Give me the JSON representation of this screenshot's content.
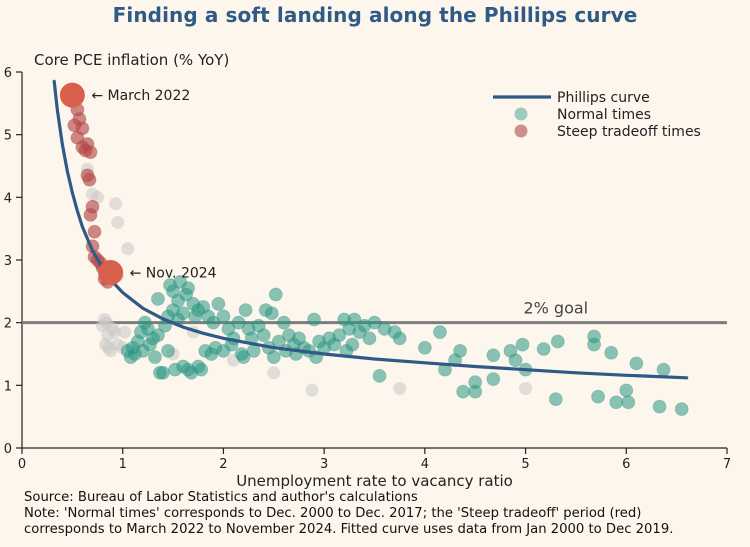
{
  "title": "Finding a soft landing along the Phillips curve",
  "footnotes": {
    "source": "Source: Bureau of Labor Statistics and author's calculations",
    "note1": "Note: 'Normal times' corresponds to Dec. 2000 to Dec. 2017; the 'Steep tradeoff' period (red)",
    "note2": "corresponds to March 2022 to November 2024. Fitted curve uses data from Jan 2000 to Dec 2019."
  },
  "colors": {
    "title": "#2f5a86",
    "curve": "#2f5a86",
    "normal": "#2a9584",
    "steep": "#b34a4a",
    "highlight": "#d9604c",
    "other": "#c9c9c9",
    "goal_line": "#7d7d7d",
    "background": "#fdf6ec"
  },
  "chart_data": {
    "type": "scatter",
    "title": "Finding a soft landing along the Phillips curve",
    "xlabel": "Unemployment rate to vacancy ratio",
    "ylabel": "Core PCE inflation (% YoY)",
    "xlim": [
      0,
      7
    ],
    "ylim": [
      0,
      6
    ],
    "xticks": [
      0,
      1,
      2,
      3,
      4,
      5,
      6,
      7
    ],
    "yticks": [
      0,
      1,
      2,
      3,
      4,
      5,
      6
    ],
    "grid": false,
    "legend_position": "top-right",
    "legend": [
      "Phillips curve",
      "Normal times",
      "Steep tradeoff times"
    ],
    "reference_line": {
      "y": 2,
      "label": "2% goal"
    },
    "annotations": [
      {
        "text": "← March 2022",
        "x": 0.5,
        "y": 5.63
      },
      {
        "text": "← Nov. 2024",
        "x": 0.88,
        "y": 2.8
      }
    ],
    "highlight_points": [
      [
        0.5,
        5.63
      ],
      [
        0.88,
        2.8
      ]
    ],
    "phillips_curve": {
      "x": [
        0.32,
        0.35,
        0.4,
        0.45,
        0.5,
        0.55,
        0.6,
        0.7,
        0.8,
        0.9,
        1.0,
        1.2,
        1.4,
        1.6,
        1.8,
        2.0,
        2.5,
        3.0,
        3.5,
        4.0,
        4.5,
        5.0,
        5.5,
        6.0,
        6.6
      ],
      "y": [
        5.85,
        5.4,
        4.85,
        4.42,
        4.07,
        3.78,
        3.53,
        3.15,
        2.87,
        2.65,
        2.48,
        2.23,
        2.06,
        1.93,
        1.83,
        1.75,
        1.6,
        1.5,
        1.42,
        1.36,
        1.3,
        1.25,
        1.2,
        1.16,
        1.12
      ]
    },
    "series": [
      {
        "name": "Normal times",
        "points": [
          [
            1.05,
            1.55
          ],
          [
            1.08,
            1.45
          ],
          [
            1.1,
            1.6
          ],
          [
            1.12,
            1.5
          ],
          [
            1.15,
            1.7
          ],
          [
            1.18,
            1.85
          ],
          [
            1.2,
            1.55
          ],
          [
            1.22,
            2.0
          ],
          [
            1.25,
            1.9
          ],
          [
            1.27,
            1.65
          ],
          [
            1.3,
            1.75
          ],
          [
            1.32,
            1.45
          ],
          [
            1.35,
            1.8
          ],
          [
            1.35,
            2.38
          ],
          [
            1.37,
            1.2
          ],
          [
            1.4,
            1.2
          ],
          [
            1.42,
            1.95
          ],
          [
            1.45,
            2.1
          ],
          [
            1.45,
            1.55
          ],
          [
            1.47,
            2.6
          ],
          [
            1.5,
            2.5
          ],
          [
            1.5,
            2.2
          ],
          [
            1.52,
            1.25
          ],
          [
            1.55,
            2.35
          ],
          [
            1.55,
            2.05
          ],
          [
            1.57,
            2.65
          ],
          [
            1.6,
            1.3
          ],
          [
            1.6,
            2.15
          ],
          [
            1.63,
            2.45
          ],
          [
            1.65,
            1.25
          ],
          [
            1.65,
            2.55
          ],
          [
            1.68,
            1.2
          ],
          [
            1.7,
            2.3
          ],
          [
            1.72,
            2.1
          ],
          [
            1.75,
            1.3
          ],
          [
            1.75,
            2.2
          ],
          [
            1.78,
            1.25
          ],
          [
            1.8,
            2.25
          ],
          [
            1.82,
            1.55
          ],
          [
            1.85,
            2.1
          ],
          [
            1.88,
            1.5
          ],
          [
            1.9,
            2.0
          ],
          [
            1.92,
            1.6
          ],
          [
            1.95,
            2.3
          ],
          [
            2.0,
            1.55
          ],
          [
            2.0,
            2.1
          ],
          [
            2.05,
            1.9
          ],
          [
            2.08,
            1.65
          ],
          [
            2.1,
            1.75
          ],
          [
            2.15,
            2.0
          ],
          [
            2.18,
            1.5
          ],
          [
            2.2,
            1.45
          ],
          [
            2.22,
            2.2
          ],
          [
            2.25,
            1.9
          ],
          [
            2.28,
            1.75
          ],
          [
            2.3,
            1.55
          ],
          [
            2.35,
            1.95
          ],
          [
            2.4,
            1.8
          ],
          [
            2.42,
            2.2
          ],
          [
            2.45,
            1.6
          ],
          [
            2.48,
            2.15
          ],
          [
            2.5,
            1.45
          ],
          [
            2.52,
            2.45
          ],
          [
            2.55,
            1.7
          ],
          [
            2.6,
            2.0
          ],
          [
            2.62,
            1.55
          ],
          [
            2.65,
            1.8
          ],
          [
            2.7,
            1.65
          ],
          [
            2.72,
            1.5
          ],
          [
            2.75,
            1.75
          ],
          [
            2.8,
            1.6
          ],
          [
            2.85,
            1.55
          ],
          [
            2.9,
            2.05
          ],
          [
            2.92,
            1.45
          ],
          [
            2.95,
            1.7
          ],
          [
            3.0,
            1.6
          ],
          [
            3.05,
            1.75
          ],
          [
            3.1,
            1.65
          ],
          [
            3.15,
            1.8
          ],
          [
            3.2,
            2.05
          ],
          [
            3.22,
            1.55
          ],
          [
            3.25,
            1.9
          ],
          [
            3.28,
            1.65
          ],
          [
            3.3,
            2.05
          ],
          [
            3.35,
            1.85
          ],
          [
            3.4,
            1.95
          ],
          [
            3.45,
            1.75
          ],
          [
            3.5,
            2.0
          ],
          [
            3.55,
            1.15
          ],
          [
            3.6,
            1.9
          ],
          [
            3.7,
            1.85
          ],
          [
            3.75,
            1.75
          ],
          [
            4.0,
            1.6
          ],
          [
            4.15,
            1.85
          ],
          [
            4.2,
            1.25
          ],
          [
            4.3,
            1.4
          ],
          [
            4.35,
            1.55
          ],
          [
            4.38,
            0.9
          ],
          [
            4.5,
            1.05
          ],
          [
            4.5,
            0.9
          ],
          [
            4.68,
            1.48
          ],
          [
            4.68,
            1.1
          ],
          [
            4.85,
            1.55
          ],
          [
            4.9,
            1.4
          ],
          [
            4.97,
            1.65
          ],
          [
            5.0,
            1.25
          ],
          [
            5.18,
            1.58
          ],
          [
            5.3,
            0.78
          ],
          [
            5.32,
            1.7
          ],
          [
            5.68,
            1.78
          ],
          [
            5.68,
            1.65
          ],
          [
            5.72,
            0.82
          ],
          [
            5.85,
            1.52
          ],
          [
            5.9,
            0.73
          ],
          [
            6.0,
            0.92
          ],
          [
            6.02,
            0.73
          ],
          [
            6.1,
            1.35
          ],
          [
            6.33,
            0.66
          ],
          [
            6.37,
            1.25
          ],
          [
            6.55,
            0.62
          ]
        ]
      },
      {
        "name": "Steep tradeoff times",
        "points": [
          [
            0.5,
            5.63
          ],
          [
            0.52,
            5.55
          ],
          [
            0.55,
            5.4
          ],
          [
            0.57,
            5.25
          ],
          [
            0.6,
            5.1
          ],
          [
            0.52,
            5.15
          ],
          [
            0.55,
            4.95
          ],
          [
            0.6,
            4.8
          ],
          [
            0.63,
            4.75
          ],
          [
            0.65,
            4.85
          ],
          [
            0.68,
            4.72
          ],
          [
            0.65,
            4.35
          ],
          [
            0.67,
            4.28
          ],
          [
            0.7,
            3.85
          ],
          [
            0.68,
            3.72
          ],
          [
            0.72,
            3.45
          ],
          [
            0.7,
            3.22
          ],
          [
            0.72,
            3.05
          ],
          [
            0.75,
            3.0
          ],
          [
            0.78,
            2.95
          ],
          [
            0.8,
            2.88
          ],
          [
            0.82,
            2.7
          ],
          [
            0.85,
            2.65
          ],
          [
            0.88,
            2.8
          ]
        ]
      },
      {
        "name": "",
        "points": [
          [
            0.65,
            4.45
          ],
          [
            0.7,
            4.05
          ],
          [
            0.75,
            4.0
          ],
          [
            0.93,
            3.9
          ],
          [
            0.95,
            3.6
          ],
          [
            1.05,
            3.18
          ],
          [
            0.95,
            2.75
          ],
          [
            0.82,
            2.05
          ],
          [
            0.8,
            1.95
          ],
          [
            0.84,
            2.0
          ],
          [
            0.85,
            1.8
          ],
          [
            0.83,
            1.65
          ],
          [
            0.86,
            1.6
          ],
          [
            0.88,
            1.55
          ],
          [
            0.9,
            1.9
          ],
          [
            0.92,
            1.85
          ],
          [
            0.95,
            1.65
          ],
          [
            1.0,
            1.6
          ],
          [
            1.02,
            1.85
          ],
          [
            1.5,
            1.5
          ],
          [
            1.7,
            1.85
          ],
          [
            2.1,
            1.4
          ],
          [
            2.5,
            1.2
          ],
          [
            2.88,
            0.92
          ],
          [
            3.75,
            0.95
          ],
          [
            5.0,
            0.95
          ]
        ]
      }
    ]
  }
}
